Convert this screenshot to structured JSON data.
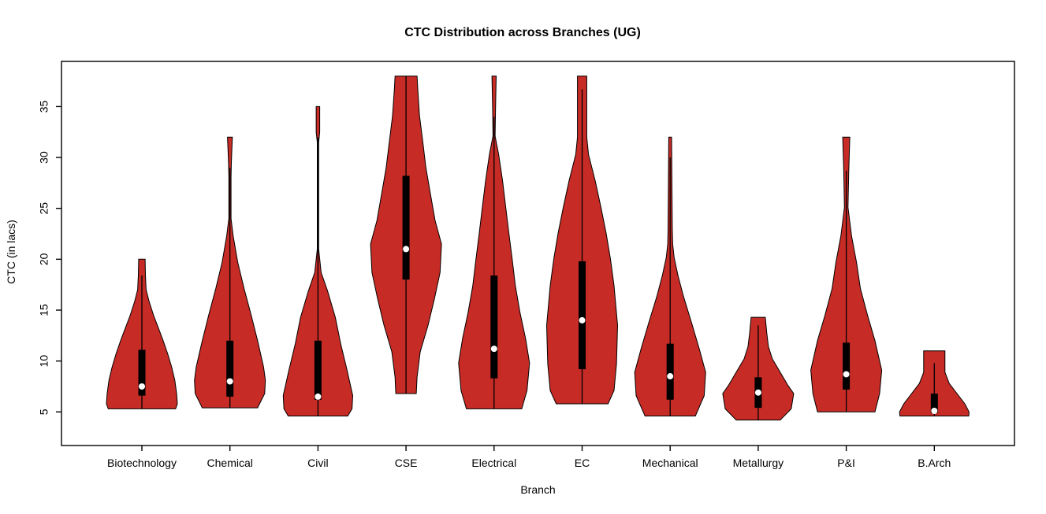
{
  "title": "CTC Distribution across Branches (UG)",
  "colors": {
    "violin_fill": "#C62B26",
    "violin_stroke": "#000000",
    "box_fill": "#000000",
    "median_dot": "#FFFFFF",
    "axis": "#000000",
    "background": "#FFFFFF"
  },
  "chart_data": {
    "type": "violin",
    "title": "CTC Distribution across Branches (UG)",
    "xlabel": "Branch",
    "ylabel": "CTC (in lacs)",
    "ylim": [
      1.5,
      39.5
    ],
    "yticks": [
      5,
      10,
      15,
      20,
      25,
      30,
      35
    ],
    "grid": false,
    "legend": "none",
    "categories": [
      "Biotechnology",
      "Chemical",
      "Civil",
      "CSE",
      "Electrical",
      "EC",
      "Mechanical",
      "Metallurgy",
      "P&I",
      "B.Arch"
    ],
    "violins": [
      {
        "name": "Biotechnology",
        "min": 5.3,
        "max": 20,
        "q1": 6.6,
        "median": 7.5,
        "q3": 11.1,
        "whisker_low": 5.3,
        "whisker_high": 18.4,
        "shape": [
          [
            20,
            0.09
          ],
          [
            18.4,
            0.1
          ],
          [
            17,
            0.12
          ],
          [
            15.9,
            0.2
          ],
          [
            14.5,
            0.33
          ],
          [
            13.2,
            0.47
          ],
          [
            12,
            0.6
          ],
          [
            10.7,
            0.73
          ],
          [
            9.4,
            0.84
          ],
          [
            8.1,
            0.93
          ],
          [
            6.8,
            0.98
          ],
          [
            5.8,
            1.0
          ],
          [
            5.3,
            0.95
          ]
        ]
      },
      {
        "name": "Chemical",
        "min": 5.4,
        "max": 32,
        "q1": 6.5,
        "median": 8,
        "q3": 12,
        "whisker_low": 5.4,
        "whisker_high": 29,
        "shape": [
          [
            32,
            0.07
          ],
          [
            29.5,
            0.04
          ],
          [
            28,
            0.03
          ],
          [
            24,
            0.03
          ],
          [
            22.3,
            0.09
          ],
          [
            19.7,
            0.22
          ],
          [
            17.1,
            0.4
          ],
          [
            14.5,
            0.6
          ],
          [
            12,
            0.78
          ],
          [
            9.4,
            0.95
          ],
          [
            8.1,
            1.0
          ],
          [
            6.8,
            0.98
          ],
          [
            5.4,
            0.78
          ]
        ]
      },
      {
        "name": "Civil",
        "min": 4.6,
        "max": 35,
        "q1": 6.2,
        "median": 6.5,
        "q3": 12,
        "whisker_low": 4.6,
        "whisker_high": 32,
        "shape": [
          [
            35,
            0.05
          ],
          [
            32.5,
            0.05
          ],
          [
            31.5,
            0.02
          ],
          [
            21,
            0.02
          ],
          [
            18.7,
            0.09
          ],
          [
            16.9,
            0.27
          ],
          [
            14.3,
            0.49
          ],
          [
            11.7,
            0.64
          ],
          [
            9.1,
            0.82
          ],
          [
            6.6,
            0.98
          ],
          [
            5.3,
            0.96
          ],
          [
            4.6,
            0.84
          ]
        ]
      },
      {
        "name": "CSE",
        "min": 6.8,
        "max": 38,
        "q1": 18,
        "median": 21,
        "q3": 28.2,
        "whisker_low": 6.8,
        "whisker_high": 38,
        "shape": [
          [
            38,
            0.31
          ],
          [
            36.7,
            0.33
          ],
          [
            34.1,
            0.38
          ],
          [
            31.6,
            0.47
          ],
          [
            29,
            0.56
          ],
          [
            26.4,
            0.69
          ],
          [
            23.8,
            0.82
          ],
          [
            21.5,
            1.0
          ],
          [
            18.7,
            0.96
          ],
          [
            16.1,
            0.8
          ],
          [
            13.5,
            0.62
          ],
          [
            10.9,
            0.4
          ],
          [
            8.4,
            0.31
          ],
          [
            6.8,
            0.29
          ]
        ]
      },
      {
        "name": "Electrical",
        "min": 5.3,
        "max": 38,
        "q1": 8.3,
        "median": 11.2,
        "q3": 18.4,
        "whisker_low": 5.3,
        "whisker_high": 34,
        "shape": [
          [
            38,
            0.06
          ],
          [
            34.5,
            0.04
          ],
          [
            32.1,
            0.03
          ],
          [
            30.3,
            0.13
          ],
          [
            27.7,
            0.24
          ],
          [
            25.1,
            0.33
          ],
          [
            22.5,
            0.42
          ],
          [
            20,
            0.51
          ],
          [
            17.4,
            0.6
          ],
          [
            14.8,
            0.73
          ],
          [
            12.2,
            0.89
          ],
          [
            9.8,
            1.0
          ],
          [
            7.1,
            0.93
          ],
          [
            5.3,
            0.78
          ]
        ]
      },
      {
        "name": "EC",
        "min": 5.8,
        "max": 38,
        "q1": 9.2,
        "median": 14,
        "q3": 19.8,
        "whisker_low": 5.8,
        "whisker_high": 36.7,
        "shape": [
          [
            38,
            0.13
          ],
          [
            32,
            0.13
          ],
          [
            30.3,
            0.18
          ],
          [
            27.7,
            0.37
          ],
          [
            25.1,
            0.53
          ],
          [
            22.5,
            0.68
          ],
          [
            20,
            0.8
          ],
          [
            17.4,
            0.9
          ],
          [
            13.5,
            1.0
          ],
          [
            9.7,
            0.97
          ],
          [
            7.1,
            0.9
          ],
          [
            5.8,
            0.73
          ]
        ]
      },
      {
        "name": "Mechanical",
        "min": 4.6,
        "max": 32,
        "q1": 6.2,
        "median": 8.5,
        "q3": 11.7,
        "whisker_low": 4.6,
        "whisker_high": 30,
        "shape": [
          [
            32,
            0.04
          ],
          [
            23,
            0.06
          ],
          [
            21.5,
            0.07
          ],
          [
            20.2,
            0.11
          ],
          [
            18.4,
            0.22
          ],
          [
            16.3,
            0.38
          ],
          [
            13.8,
            0.6
          ],
          [
            11.2,
            0.82
          ],
          [
            8.9,
            1.0
          ],
          [
            6.6,
            0.96
          ],
          [
            4.6,
            0.71
          ]
        ]
      },
      {
        "name": "Metallurgy",
        "min": 4.2,
        "max": 14.3,
        "q1": 5.4,
        "median": 6.9,
        "q3": 8.4,
        "whisker_low": 4.2,
        "whisker_high": 13.5,
        "shape": [
          [
            14.3,
            0.2
          ],
          [
            12.8,
            0.24
          ],
          [
            11.4,
            0.29
          ],
          [
            10.2,
            0.4
          ],
          [
            8.9,
            0.62
          ],
          [
            7.6,
            0.84
          ],
          [
            6.8,
            1.0
          ],
          [
            5.3,
            0.93
          ],
          [
            4.2,
            0.62
          ]
        ]
      },
      {
        "name": "P&I",
        "min": 5.0,
        "max": 32,
        "q1": 7.2,
        "median": 8.7,
        "q3": 11.8,
        "whisker_low": 5.0,
        "whisker_high": 28.7,
        "shape": [
          [
            32,
            0.1
          ],
          [
            28.7,
            0.07
          ],
          [
            25.1,
            0.05
          ],
          [
            22.3,
            0.15
          ],
          [
            19.7,
            0.29
          ],
          [
            17.1,
            0.4
          ],
          [
            14.5,
            0.6
          ],
          [
            12,
            0.81
          ],
          [
            9.1,
            1.0
          ],
          [
            6.8,
            0.94
          ],
          [
            5.0,
            0.81
          ]
        ]
      },
      {
        "name": "B.Arch",
        "min": 4.6,
        "max": 11,
        "q1": 4.9,
        "median": 5.1,
        "q3": 6.8,
        "whisker_low": 4.6,
        "whisker_high": 9.8,
        "shape": [
          [
            11,
            0.3
          ],
          [
            8.9,
            0.3
          ],
          [
            7.8,
            0.42
          ],
          [
            6.8,
            0.64
          ],
          [
            5.8,
            0.86
          ],
          [
            5.0,
            0.98
          ],
          [
            4.6,
            0.97
          ]
        ]
      }
    ]
  }
}
